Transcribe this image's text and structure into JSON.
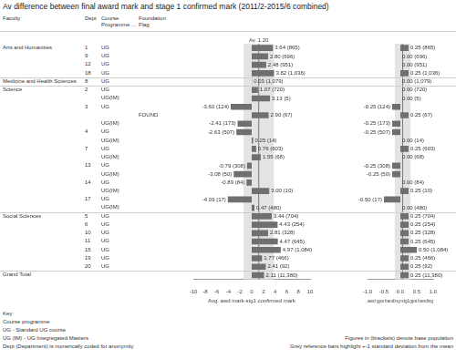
{
  "title": "Av difference between final award mark and stage 1 confirmed mark (2011/2-2015/6 combined)",
  "table": {
    "headers": [
      "Faculty",
      "Dept",
      "Course Programme ...",
      "Foundation Flag"
    ],
    "rows": [
      [
        "Arts and Humanities",
        "1",
        "UG",
        null
      ],
      [
        null,
        "9",
        "UG",
        null
      ],
      [
        null,
        "12",
        "UG",
        null
      ],
      [
        null,
        "18",
        "UG",
        null
      ],
      [
        "Medicine and Health Sciences",
        "8",
        "UG",
        null
      ],
      [
        "Science",
        "2",
        "UG",
        null
      ],
      [
        null,
        null,
        "UG(IM)",
        null
      ],
      [
        null,
        "3",
        "UG",
        null
      ],
      [
        null,
        null,
        null,
        "FOUND"
      ],
      [
        null,
        null,
        "UG(IM)",
        null
      ],
      [
        null,
        "4",
        "UG",
        null
      ],
      [
        null,
        null,
        "UG(IM)",
        null
      ],
      [
        null,
        "7",
        "UG",
        null
      ],
      [
        null,
        null,
        "UG(IM)",
        null
      ],
      [
        null,
        "13",
        "UG",
        null
      ],
      [
        null,
        null,
        "UG(IM)",
        null
      ],
      [
        null,
        "14",
        "UG",
        null
      ],
      [
        null,
        null,
        "UG(IM)",
        null
      ],
      [
        null,
        "17",
        "UG",
        null
      ],
      [
        null,
        null,
        "UG(IM)",
        null
      ],
      [
        "Social Sciences",
        "5",
        "UG",
        null
      ],
      [
        null,
        "6",
        "UG",
        null
      ],
      [
        null,
        "10",
        "UG",
        null
      ],
      [
        null,
        "11",
        "UG",
        null
      ],
      [
        null,
        "15",
        "UG",
        null
      ],
      [
        null,
        "19",
        "UG",
        null
      ],
      [
        null,
        "20",
        "UG",
        null
      ],
      [
        "Grand Total",
        null,
        null,
        null
      ]
    ]
  },
  "chart_data": [
    {
      "type": "bar",
      "orientation": "horizontal",
      "color": "#6f6f6f",
      "grid": false,
      "tick_labels": "x",
      "data_labels": true,
      "x_label": "Avg. awd mark-stg1 confirmed mark",
      "xlim": [
        -10,
        10
      ],
      "xticks": [
        -10,
        -8,
        -6,
        -4,
        -2,
        0,
        2,
        4,
        6,
        8,
        10
      ],
      "values": [
        3.64,
        2.8,
        2.48,
        3.82,
        0.03,
        1.07,
        3.13,
        -3.6,
        2.9,
        -2.41,
        -2.63,
        0.25,
        0.76,
        1.55,
        -0.79,
        -3.08,
        -0.89,
        3.0,
        -4.09,
        0.47,
        3.44,
        4.43,
        2.81,
        4.47,
        4.97,
        1.77,
        2.41,
        2.11
      ],
      "value_labels": [
        "3.64 (865)",
        "2.80 (696)",
        "2.48 (951)",
        "3.82 (1,036)",
        "0.03 (1,079)",
        "1.07 (720)",
        "3.13 (5)",
        "-3.60 (124)",
        "2.90 (67)",
        "-2.41 (173)",
        "-2.63 (507)",
        "0.25 (14)",
        "0.76 (603)",
        "1.55 (68)",
        "-0.79 (308)",
        "-3.08 (50)",
        "-0.89 (84)",
        "3.00 (10)",
        "-4.09 (17)",
        "0.47 (480)",
        "3.44 (704)",
        "4.43 (254)",
        "2.81 (328)",
        "4.47 (645)",
        "4.97 (1,084)",
        "1.77 (466)",
        "2.41 (92)",
        "2.11 (11,380)"
      ],
      "mean": 1.2,
      "mean_label": "Av. 1.20",
      "sd_band": [
        -1.4,
        3.8
      ]
    },
    {
      "type": "bar",
      "orientation": "horizontal",
      "color": "#6f6f6f",
      "grid": false,
      "tick_labels": "x",
      "data_labels": true,
      "x_label": "awd gpa banding-stg1gpa banding",
      "xlim": [
        -1,
        1
      ],
      "xticks": [
        {
          "value": -1,
          "label": "-1.0"
        },
        {
          "value": -0.5,
          "label": "-0.5"
        },
        {
          "value": 0,
          "label": "0.0"
        },
        {
          "value": 0.5,
          "label": "0.5"
        },
        {
          "value": 1,
          "label": "1.0"
        }
      ],
      "values": [
        0.25,
        0,
        0,
        0.25,
        0,
        0,
        0,
        -0.25,
        0.25,
        -0.25,
        -0.25,
        0,
        0.25,
        0,
        -0.25,
        -0.25,
        0,
        0.25,
        -0.5,
        0,
        0.25,
        0.25,
        0.25,
        0.25,
        0.5,
        0.25,
        0.25,
        0.25
      ],
      "value_labels": [
        "0.25 (865)",
        "0.00 (696)",
        "0.00 (951)",
        "0.25 (1,036)",
        "0.00 (1,079)",
        "0.00 (720)",
        "0.00 (5)",
        "-0.25 (124)",
        "0.25 (67)",
        "-0.25 (173)",
        "-0.25 (507)",
        "0.00 (14)",
        "0.25 (603)",
        "0.00 (68)",
        "-0.25 (308)",
        "-0.25 (50)",
        "0.00 (84)",
        "0.25 (10)",
        "-0.50 (17)",
        "0.00 (480)",
        "0.25 (704)",
        "0.25 (254)",
        "0.25 (328)",
        "0.25 (645)",
        "0.50 (1,084)",
        "0.25 (466)",
        "0.25 (92)",
        "0.25 (11,380)"
      ],
      "mean": 0.07,
      "sd_band": [
        -0.17,
        0.31
      ]
    }
  ],
  "key": {
    "title": "Key:",
    "lines": [
      "Course programme",
      "UG - Standard UG course",
      "UG (IM) - UG Integregated Masters",
      "Dept (Department) is numerically coded for anonymity"
    ],
    "notes": [
      "Figures in (brackets) denote base population",
      "Grey reference bars highlight +-1 standard deviation from the mean"
    ]
  }
}
